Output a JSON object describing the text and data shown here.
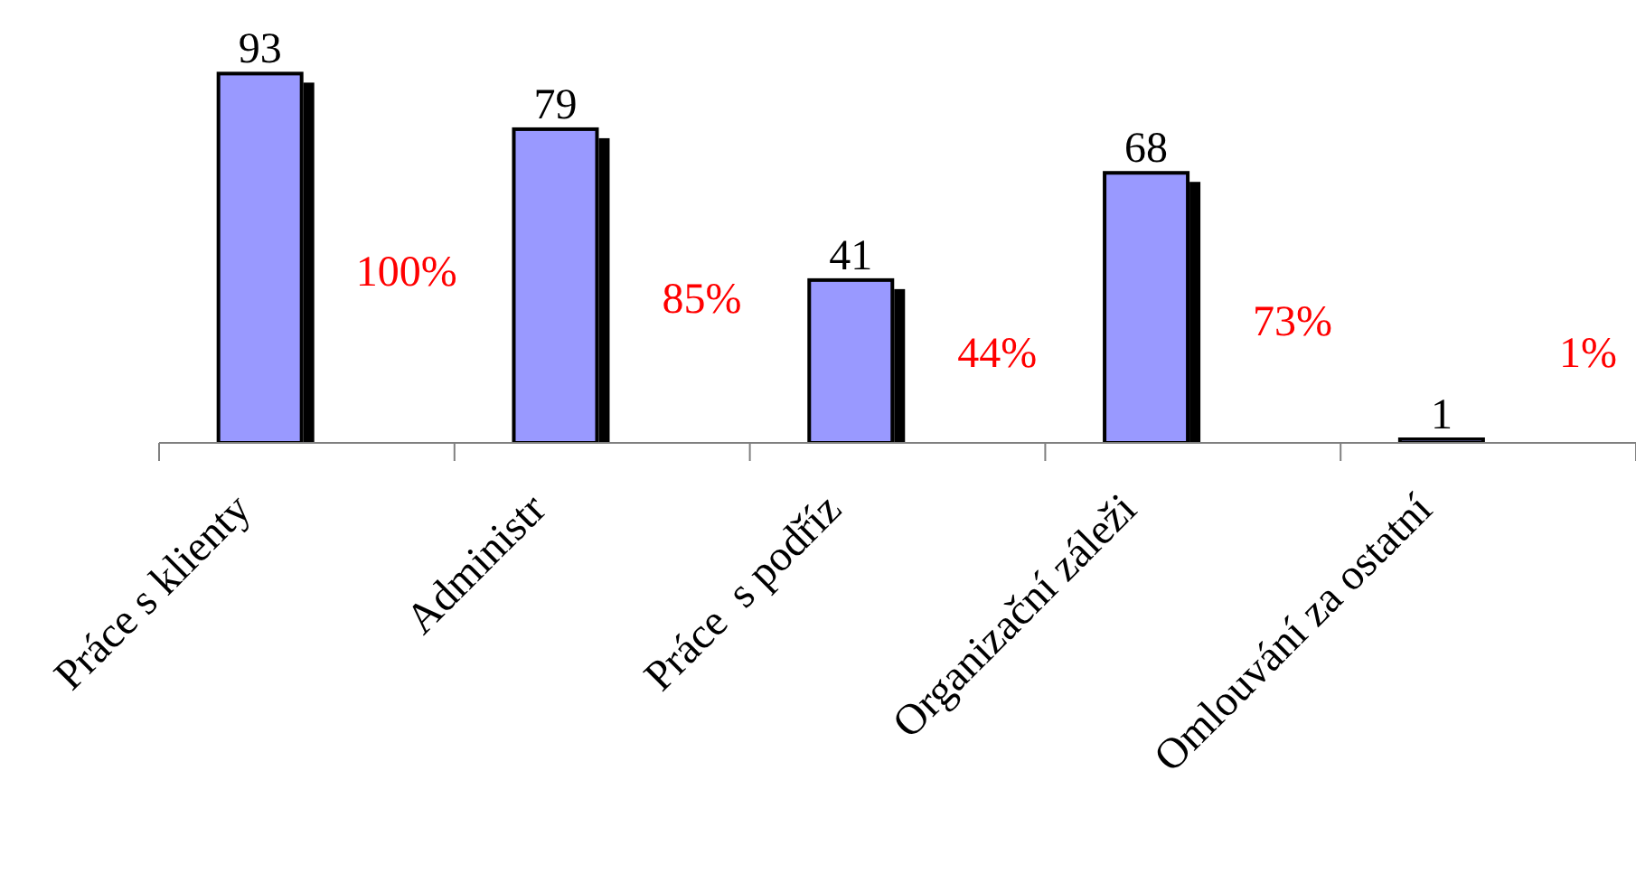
{
  "chart_data": {
    "type": "bar",
    "categories": [
      "Práce s klienty",
      "Administr",
      "Práce  s podříz",
      "Organizační záleži",
      "Omlouvání za ostatní"
    ],
    "values": [
      93,
      79,
      41,
      68,
      1
    ],
    "color": "#9999ff",
    "data_labels": true,
    "annotations": [
      "100%",
      "85%",
      "44%",
      "73%",
      "1%"
    ]
  }
}
